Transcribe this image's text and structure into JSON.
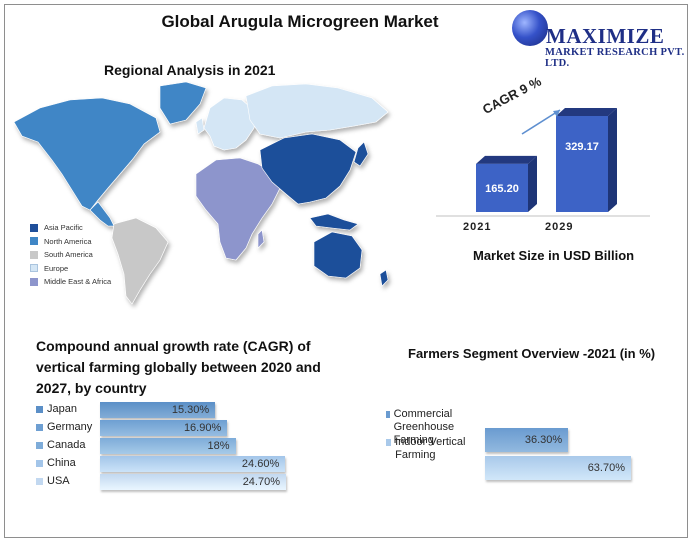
{
  "title": "Global Arugula Microgreen Market",
  "logo": {
    "name": "MAXIMIZE",
    "subtitle": "MARKET RESEARCH PVT. LTD."
  },
  "map": {
    "title": "Regional Analysis in 2021",
    "legend": [
      {
        "label": "Asia Pacific",
        "color": "#1f4f9a"
      },
      {
        "label": "North America",
        "color": "#3f86c6"
      },
      {
        "label": "South America",
        "color": "#c8c8c8"
      },
      {
        "label": "Europe",
        "color": "#d4e6f5"
      },
      {
        "label": "Middle East & Africa",
        "color": "#8d95cc"
      }
    ]
  },
  "chart_data": [
    {
      "type": "bar",
      "categories": [
        "2021",
        "2029"
      ],
      "values": [
        165.2,
        329.17
      ],
      "value_labels": [
        "165.20",
        "329.17"
      ],
      "annotation": "CAGR 9 %",
      "xlabel": "Market Size in USD Billion",
      "color": "#3d63c6"
    },
    {
      "type": "bar",
      "orientation": "horizontal",
      "title": "Compound annual growth rate (CAGR) of vertical farming globally between 2020 and 2027, by country",
      "categories": [
        "Japan",
        "Germany",
        "Canada",
        "China",
        "USA"
      ],
      "values": [
        15.3,
        16.9,
        18,
        24.6,
        24.7
      ],
      "value_labels": [
        "15.30%",
        "16.90%",
        "18%",
        "24.60%",
        "24.70%"
      ],
      "colors": [
        "#5b8fc7",
        "#6e9fd2",
        "#7eacd9",
        "#a3c5e9",
        "#c2d8f0"
      ]
    },
    {
      "type": "bar",
      "orientation": "horizontal",
      "title": "Farmers Segment Overview -2021 (in %)",
      "categories": [
        "Commercial Greenhouse Farming",
        "Indoor Vertical Farming"
      ],
      "values": [
        36.3,
        63.7
      ],
      "value_labels": [
        "36.30%",
        "63.70%"
      ],
      "colors": [
        "#6a9bd0",
        "#a9c9ea"
      ]
    }
  ]
}
